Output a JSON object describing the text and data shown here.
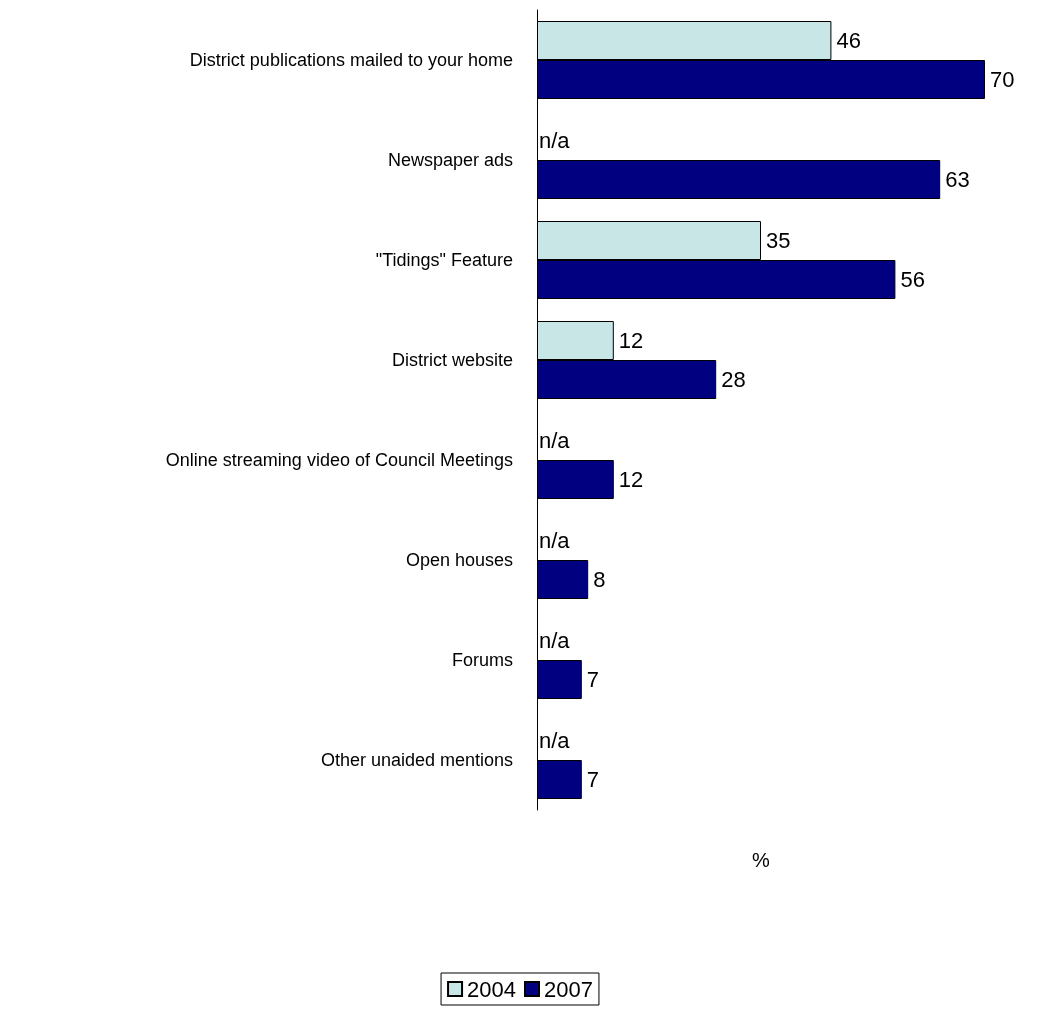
{
  "chart_data": {
    "type": "bar",
    "orientation": "horizontal",
    "relative": false,
    "xlabel": "%",
    "categories": [
      "District publications mailed to your home",
      "Newspaper ads",
      "\"Tidings\" Feature",
      "District website",
      "Online streaming video of Council Meetings",
      "Open houses",
      "Forums",
      "Other unaided mentions"
    ],
    "series": [
      {
        "name": "2004",
        "color": "#c8e6e6",
        "values": [
          46,
          null,
          35,
          12,
          null,
          null,
          null,
          null
        ],
        "value_labels": [
          "46",
          "n/a",
          "35",
          "12",
          "n/a",
          "n/a",
          "n/a",
          "n/a"
        ]
      },
      {
        "name": "2007",
        "color": "#000080",
        "values": [
          70,
          63,
          56,
          28,
          12,
          8,
          7,
          7
        ],
        "value_labels": [
          "70",
          "63",
          "56",
          "28",
          "12",
          "8",
          "7",
          "7"
        ]
      }
    ],
    "tick_labels": "y",
    "grid": false,
    "legend": "bottom"
  }
}
